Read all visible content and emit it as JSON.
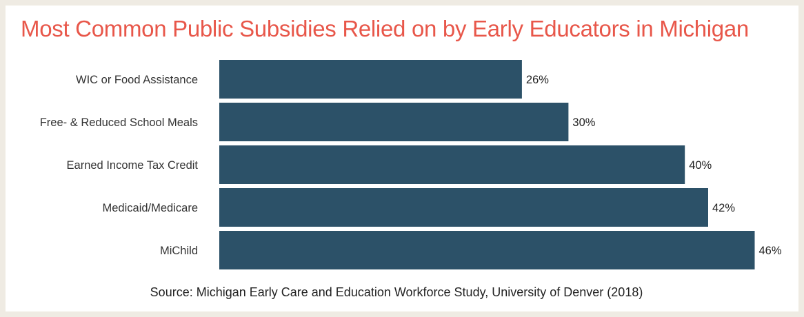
{
  "colors": {
    "page_border": "#efebe3",
    "background": "#ffffff",
    "title": "#e8574a",
    "bar": "#2c5168",
    "label_text": "#333333",
    "value_text": "#222222"
  },
  "chart_data": {
    "type": "bar",
    "orientation": "horizontal",
    "title": "Most Common Public Subsidies Relied on by Early Educators in Michigan",
    "categories": [
      "WIC or Food Assistance",
      "Free- & Reduced School Meals",
      "Earned Income Tax Credit",
      "Medicaid/Medicare",
      "MiChild"
    ],
    "values": [
      26,
      30,
      40,
      42,
      46
    ],
    "value_labels": [
      "26%",
      "30%",
      "40%",
      "42%",
      "46%"
    ],
    "xlim": [
      0,
      50
    ],
    "grid": false,
    "legend": "none",
    "source": "Source: Michigan Early Care and Education Workforce Study, University of Denver (2018)"
  }
}
